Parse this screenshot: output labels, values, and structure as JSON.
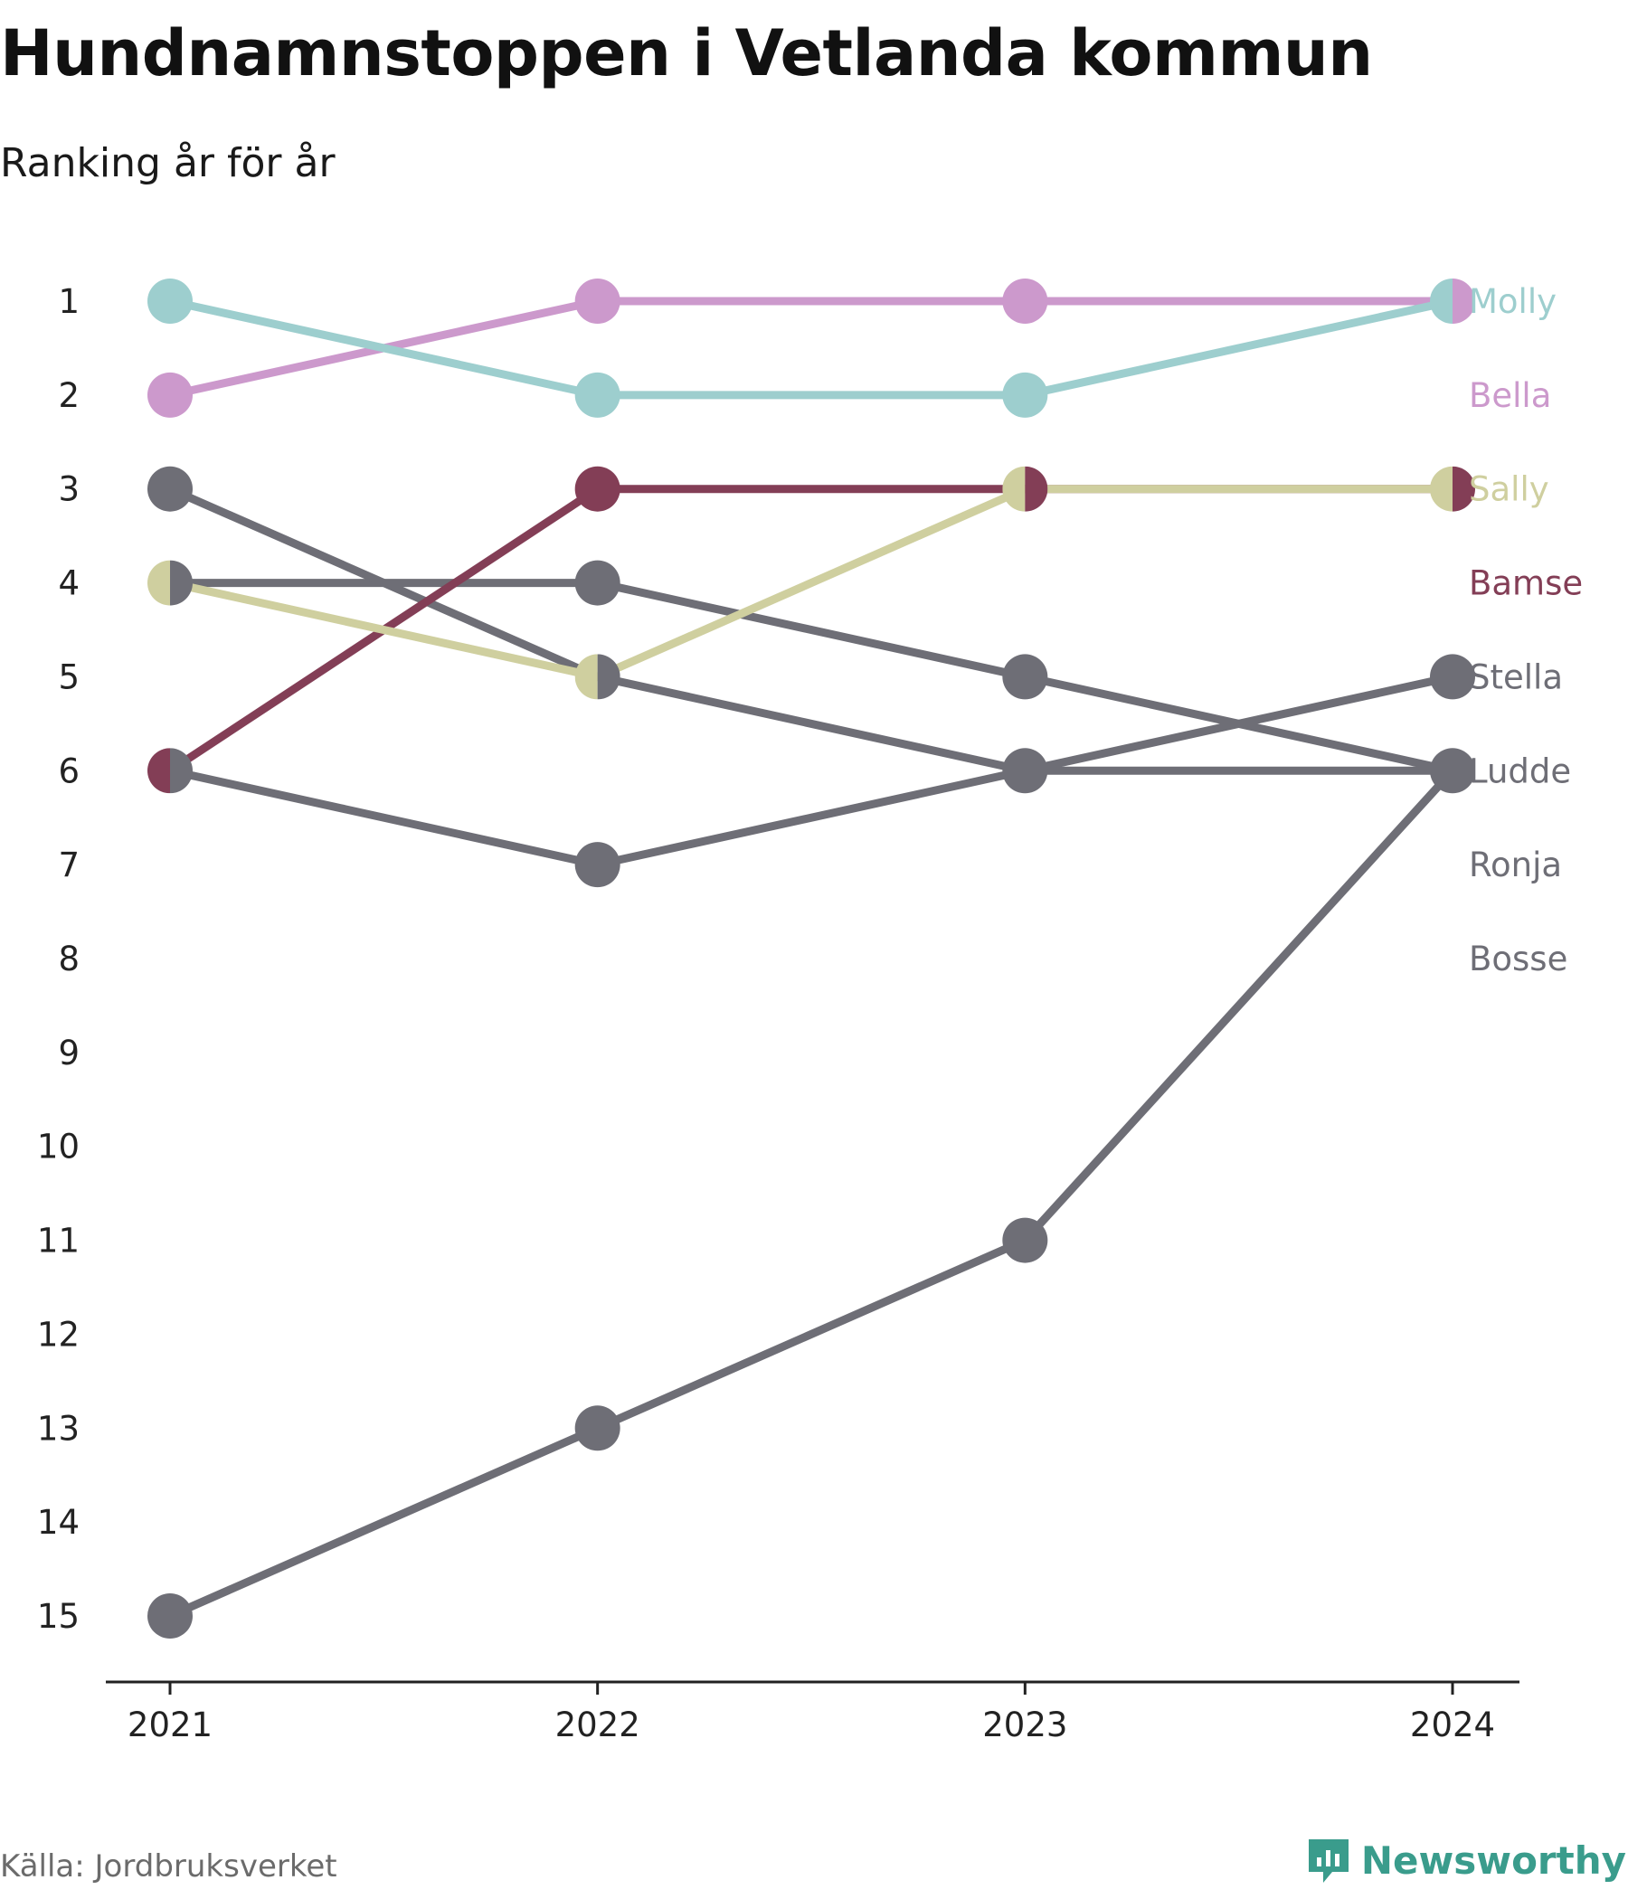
{
  "title": "Hundnamnstoppen i Vetlanda kommun",
  "subtitle": "Ranking år för år",
  "source": "Källa: Jordbruksverket",
  "brand": {
    "name": "Newsworthy",
    "icon": "newsworthy-logo-icon",
    "color": "#3a9c8c"
  },
  "chart_data": {
    "type": "line",
    "x": [
      "2021",
      "2022",
      "2023",
      "2024"
    ],
    "y_ticks": [
      1,
      2,
      3,
      4,
      5,
      6,
      7,
      8,
      9,
      10,
      11,
      12,
      13,
      14,
      15
    ],
    "ylim": [
      1,
      15
    ],
    "y_reversed": true,
    "grid": false,
    "legend": "right-end-labels",
    "series": [
      {
        "name": "Molly",
        "color": "#9dcece",
        "values": [
          1,
          2,
          2,
          1
        ]
      },
      {
        "name": "Bella",
        "color": "#cc99cc",
        "values": [
          2,
          1,
          1,
          1
        ]
      },
      {
        "name": "Sally",
        "color": "#cfcf9f",
        "values": [
          4,
          5,
          3,
          3
        ]
      },
      {
        "name": "Bamse",
        "color": "#833e56",
        "values": [
          6,
          3,
          3,
          3
        ]
      },
      {
        "name": "Stella",
        "color": "#6e6e76",
        "values": [
          6,
          7,
          6,
          5
        ]
      },
      {
        "name": "Ludde",
        "color": "#6e6e76",
        "values": [
          3,
          5,
          6,
          6
        ]
      },
      {
        "name": "Ronja",
        "color": "#6e6e76",
        "values": [
          4,
          4,
          5,
          6
        ]
      },
      {
        "name": "Bosse",
        "color": "#6e6e76",
        "values": [
          15,
          13,
          11,
          6
        ]
      }
    ]
  }
}
